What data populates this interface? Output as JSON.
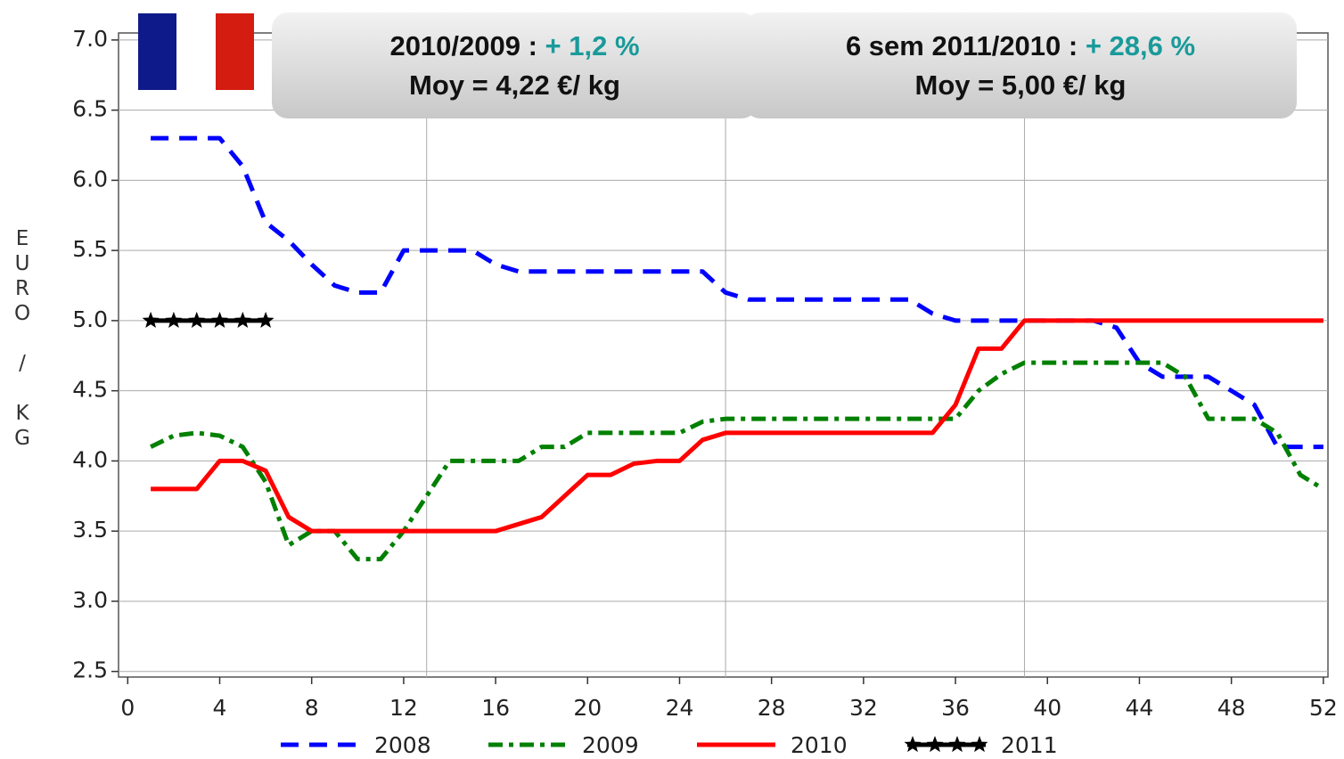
{
  "chart_data": {
    "type": "line",
    "ylabel": "EURO / KG",
    "annotations": [
      {
        "text": "2010/2009 : ",
        "highlight": "+ 1,2 %",
        "text2": "Moy = 4,22 €/ kg"
      },
      {
        "text": "6 sem 2011/2010 : ",
        "highlight": "+ 28,6 %",
        "text2": "Moy = 5,00 €/ kg"
      }
    ],
    "x": [
      1,
      2,
      3,
      4,
      5,
      6,
      7,
      8,
      9,
      10,
      11,
      12,
      13,
      14,
      15,
      16,
      17,
      18,
      19,
      20,
      21,
      22,
      23,
      24,
      25,
      26,
      27,
      28,
      29,
      30,
      31,
      32,
      33,
      34,
      35,
      36,
      37,
      38,
      39,
      40,
      41,
      42,
      43,
      44,
      45,
      46,
      47,
      48,
      49,
      50,
      51,
      52
    ],
    "series": [
      {
        "name": "2008",
        "color": "#0000ff",
        "dash": "20 12",
        "values": [
          6.3,
          6.3,
          6.3,
          6.3,
          6.1,
          5.7,
          5.57,
          5.4,
          5.25,
          5.2,
          5.2,
          5.5,
          5.5,
          5.5,
          5.5,
          5.4,
          5.35,
          5.35,
          5.35,
          5.35,
          5.35,
          5.35,
          5.35,
          5.35,
          5.35,
          5.2,
          5.15,
          5.15,
          5.15,
          5.15,
          5.15,
          5.15,
          5.15,
          5.15,
          5.05,
          5.0,
          5.0,
          5.0,
          5.0,
          5.0,
          5.0,
          5.0,
          4.95,
          4.7,
          4.6,
          4.6,
          4.6,
          4.5,
          4.4,
          4.1,
          4.1,
          4.1
        ]
      },
      {
        "name": "2009",
        "color": "#008000",
        "dash": "16 7 5 7",
        "values": [
          4.1,
          4.18,
          4.2,
          4.18,
          4.1,
          3.85,
          3.4,
          3.5,
          3.5,
          3.3,
          3.3,
          3.5,
          3.75,
          4.0,
          4.0,
          4.0,
          4.0,
          4.1,
          4.1,
          4.2,
          4.2,
          4.2,
          4.2,
          4.2,
          4.28,
          4.3,
          4.3,
          4.3,
          4.3,
          4.3,
          4.3,
          4.3,
          4.3,
          4.3,
          4.3,
          4.3,
          4.5,
          4.62,
          4.7,
          4.7,
          4.7,
          4.7,
          4.7,
          4.7,
          4.7,
          4.6,
          4.3,
          4.3,
          4.3,
          4.2,
          3.9,
          3.8
        ]
      },
      {
        "name": "2010",
        "color": "#ff0000",
        "values": [
          3.8,
          3.8,
          3.8,
          4.0,
          4.0,
          3.93,
          3.6,
          3.5,
          3.5,
          3.5,
          3.5,
          3.5,
          3.5,
          3.5,
          3.5,
          3.5,
          3.55,
          3.6,
          3.75,
          3.9,
          3.9,
          3.98,
          4.0,
          4.0,
          4.15,
          4.2,
          4.2,
          4.2,
          4.2,
          4.2,
          4.2,
          4.2,
          4.2,
          4.2,
          4.2,
          4.4,
          4.8,
          4.8,
          5.0,
          5.0,
          5.0,
          5.0,
          5.0,
          5.0,
          5.0,
          5.0,
          5.0,
          5.0,
          5.0,
          5.0,
          5.0,
          5.0
        ]
      },
      {
        "name": "2011",
        "color": "#000000",
        "marker": "star",
        "values": [
          5.0,
          5.0,
          5.0,
          5.0,
          5.0,
          5.0,
          null,
          null,
          null,
          null,
          null,
          null,
          null,
          null,
          null,
          null,
          null,
          null,
          null,
          null,
          null,
          null,
          null,
          null,
          null,
          null,
          null,
          null,
          null,
          null,
          null,
          null,
          null,
          null,
          null,
          null,
          null,
          null,
          null,
          null,
          null,
          null,
          null,
          null,
          null,
          null,
          null,
          null,
          null,
          null,
          null,
          null
        ]
      }
    ],
    "xlim": [
      -0.4,
      52.2
    ],
    "xticks": [
      0,
      4,
      8,
      12,
      16,
      20,
      24,
      28,
      32,
      36,
      40,
      44,
      48,
      52
    ],
    "xgrid": [
      13,
      26,
      39
    ],
    "ylim": [
      2.46,
      7.05
    ],
    "yticks": [
      2.5,
      {
        "value": 3,
        "label": "3.0"
      },
      3.5,
      {
        "value": 4,
        "label": "4.0"
      },
      4.5,
      {
        "value": 5,
        "label": "5.0"
      },
      5.5,
      {
        "value": 6,
        "label": "6.0"
      },
      6.5,
      {
        "value": 7,
        "label": "7.0"
      }
    ],
    "grid": true,
    "legend": "bottom"
  }
}
